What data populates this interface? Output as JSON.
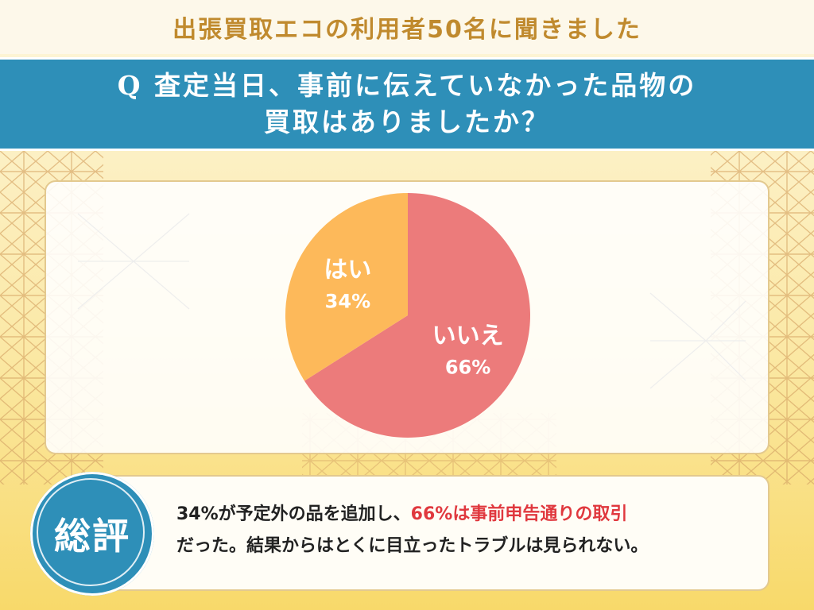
{
  "header": {
    "survey_title": "出張買取エコの利用者50名に聞きました",
    "question_line1": "Q 査定当日、事前に伝えていなかった品物の",
    "question_line2": "買取はありましたか？"
  },
  "chart_data": {
    "type": "pie",
    "title": "",
    "slices": [
      {
        "label": "いいえ",
        "value": 66,
        "display": "66%",
        "color": "#ec7b7b"
      },
      {
        "label": "はい",
        "value": 34,
        "display": "34%",
        "color": "#fdb95a"
      }
    ]
  },
  "summary": {
    "badge": "総評",
    "text_part1": "34%が予定外の品を追加し、",
    "text_highlight": "66%は事前申告通りの取引",
    "text_part2": "だった。結果からはとくに目立ったトラブルは見られない。"
  },
  "colors": {
    "accent_blue": "#2e8fb8",
    "title_gold": "#c08a2e",
    "highlight_red": "#e0383e"
  }
}
